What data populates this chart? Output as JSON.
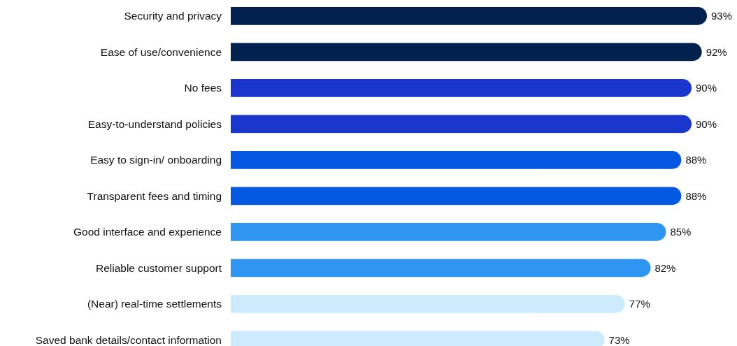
{
  "chart_data": {
    "type": "bar",
    "orientation": "horizontal",
    "categories": [
      "Security and privacy",
      "Ease of use/convenience",
      "No fees",
      "Easy-to-understand policies",
      "Easy to sign-in/ onboarding",
      "Transparent fees and timing",
      "Good interface and experience",
      "Reliable customer support",
      "(Near) real-time settlements",
      "Saved bank details/contact information"
    ],
    "values": [
      93,
      92,
      90,
      90,
      88,
      88,
      85,
      82,
      77,
      73
    ],
    "value_labels": [
      "93%",
      "92%",
      "90%",
      "90%",
      "88%",
      "88%",
      "85%",
      "82%",
      "77%",
      "73%"
    ],
    "colors": [
      "#03214f",
      "#03214f",
      "#1b36cc",
      "#1b36cc",
      "#0357e0",
      "#0357e0",
      "#2f95f2",
      "#2f95f2",
      "#ccebfc",
      "#ccebfc"
    ]
  }
}
